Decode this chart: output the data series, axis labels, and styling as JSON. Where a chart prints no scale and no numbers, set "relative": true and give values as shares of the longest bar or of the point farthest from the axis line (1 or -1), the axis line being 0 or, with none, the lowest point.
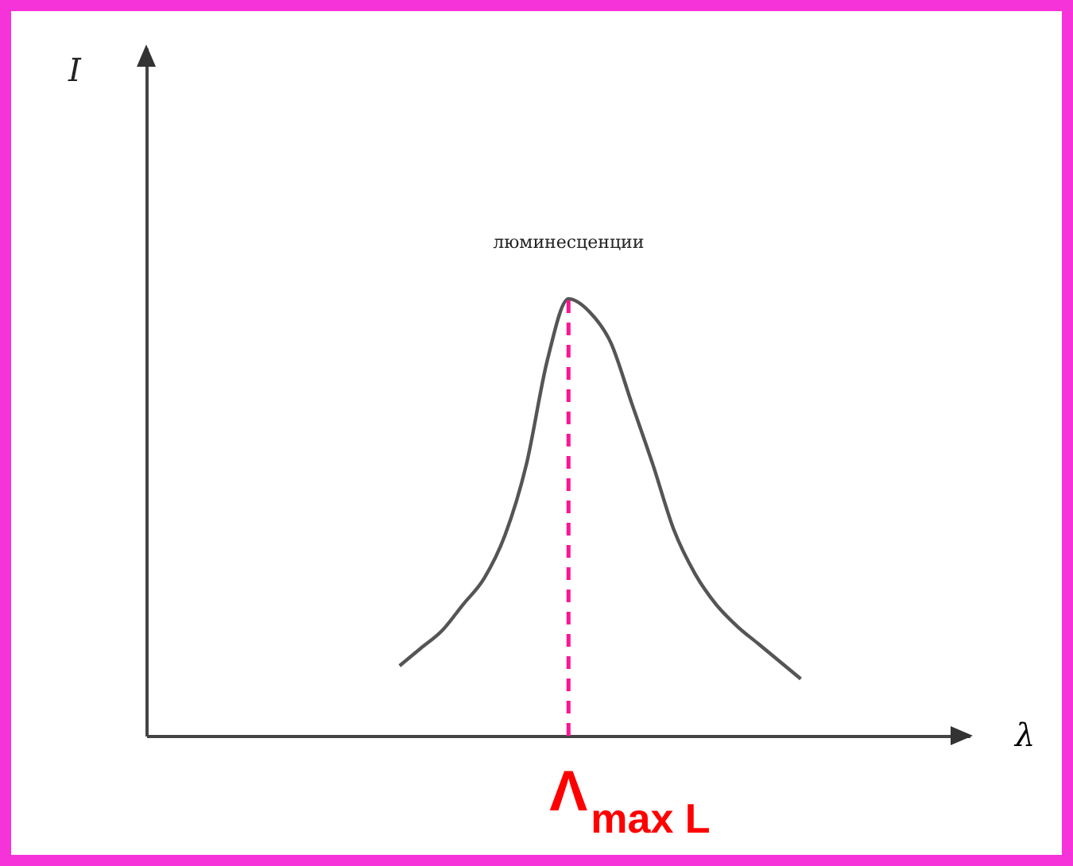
{
  "chart_data": {
    "type": "line",
    "relative": true,
    "xlabel": "λ",
    "categories": [
      null,
      null,
      null,
      null,
      null,
      null,
      null,
      null,
      null,
      null,
      null,
      null,
      null,
      null,
      null,
      null,
      null,
      null,
      null,
      null,
      null,
      null,
      null,
      null,
      null,
      null,
      null,
      null,
      null,
      null,
      null,
      null,
      null,
      null,
      null,
      null,
      null,
      null,
      null,
      null
    ],
    "series": [
      {
        "color": "#555555",
        "values": [
          null,
          null,
          null,
          null,
          null,
          null,
          null,
          null,
          null,
          null,
          null,
          null,
          0.16,
          0.2,
          0.24,
          0.3,
          0.36,
          0.46,
          0.62,
          0.86,
          1.0,
          0.97,
          0.9,
          0.76,
          0.62,
          0.47,
          0.37,
          0.3,
          0.25,
          0.21,
          0.17,
          0.13,
          null,
          null,
          null,
          null,
          null,
          null,
          null,
          null
        ]
      }
    ],
    "annotations": [
      "I",
      "люминесценции",
      "Λ$_{max L}$"
    ],
    "grid": false,
    "marker": "none",
    "line_style": "solid"
  }
}
